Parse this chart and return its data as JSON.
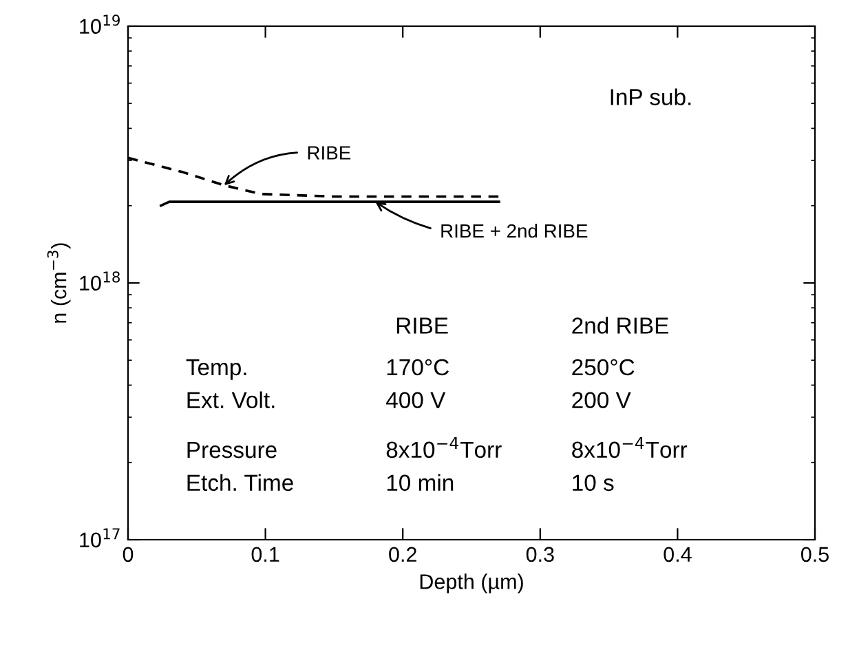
{
  "chart_data": {
    "type": "line",
    "xlabel": "Depth (µm)",
    "ylabel": "n (cm$^{−3}$)",
    "log": "y",
    "grid": false,
    "xlim": [
      0,
      0.5
    ],
    "xticks": [
      0,
      0.1,
      0.2,
      0.3,
      0.4,
      0.5
    ],
    "ylim": [
      1e+17,
      1e+19
    ],
    "yticks": [
      {
        "value": 1e+17,
        "label": "10$^{17}$"
      },
      {
        "value": 1e+18,
        "label": "10$^{18}$"
      },
      {
        "value": 1e+19,
        "label": "10$^{19}$"
      }
    ],
    "series": [
      {
        "color": "#000000",
        "line_style": "dashed",
        "x": [
          0,
          0.04,
          0.07,
          0.097,
          0.15,
          0.27
        ],
        "values": [
          3.07e+18,
          2.7e+18,
          2.4e+18,
          2.22e+18,
          2.17e+18,
          2.17e+18
        ]
      },
      {
        "color": "#000000",
        "line_style": "solid",
        "x": [
          0.024,
          0.03,
          0.27
        ],
        "values": [
          2e+18,
          2.07e+18,
          2.07e+18
        ]
      }
    ],
    "annotations": [
      {
        "text": "RIBE",
        "x": 0.07,
        "y": 2.4e+18
      },
      {
        "text": "RIBE + 2nd RIBE",
        "x": 0.18,
        "y": 2.07e+18
      },
      "InP sub.",
      "RIBE",
      "2nd RIBE",
      "Temp.",
      "170°C",
      "250°C",
      "Ext. Volt.",
      "400 V",
      "200 V",
      "Pressure",
      "8x10$^{−4}$Torr",
      "8x10$^{−4}$Torr",
      "Etch. Time",
      "10 min",
      "10 s"
    ]
  }
}
